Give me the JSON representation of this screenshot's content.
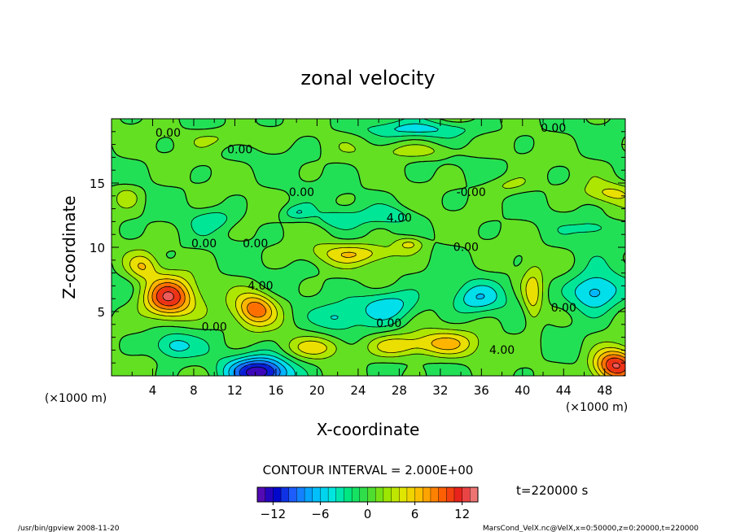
{
  "chart_data": {
    "type": "heatmap",
    "title": "zonal velocity",
    "xlabel": "X-coordinate",
    "ylabel": "Z-coordinate",
    "x_unit_left": "(×1000 m)",
    "x_unit_right": "(×1000 m)",
    "xlim": [
      0,
      50
    ],
    "ylim": [
      0,
      20
    ],
    "x_ticks": [
      4,
      8,
      12,
      16,
      20,
      24,
      28,
      32,
      36,
      40,
      44,
      48
    ],
    "y_ticks": [
      5,
      10,
      15
    ],
    "contour_interval_label": "CONTOUR INTERVAL = 2.000E+00",
    "time_label": "t=220000 s",
    "colorbar": {
      "range": [
        -14,
        14
      ],
      "ticks": [
        -12,
        -6,
        0,
        6,
        12
      ],
      "colors": [
        "#6a0dad",
        "#0000c8",
        "#1e64ff",
        "#00b4ff",
        "#00e6e6",
        "#00e678",
        "#3cdc3c",
        "#96e600",
        "#e6e600",
        "#ffb400",
        "#ff6400",
        "#e61e1e",
        "#f08c8c"
      ]
    },
    "contour_labels": [
      {
        "x": 5.5,
        "z": 18.6,
        "text": "0.00"
      },
      {
        "x": 12.5,
        "z": 17.3,
        "text": "0.00"
      },
      {
        "x": 43.0,
        "z": 19.0,
        "text": "0.00"
      },
      {
        "x": 18.5,
        "z": 14.0,
        "text": "0.00"
      },
      {
        "x": 35.0,
        "z": 14.0,
        "text": "-0.00"
      },
      {
        "x": 28.0,
        "z": 12.0,
        "text": "4.00"
      },
      {
        "x": 9.0,
        "z": 10.0,
        "text": "0.00"
      },
      {
        "x": 14.0,
        "z": 10.0,
        "text": "0.00"
      },
      {
        "x": 34.5,
        "z": 9.7,
        "text": "0.00"
      },
      {
        "x": 14.5,
        "z": 6.7,
        "text": "4.00"
      },
      {
        "x": 27.0,
        "z": 3.8,
        "text": "0.00"
      },
      {
        "x": 38.0,
        "z": 1.7,
        "text": "4.00"
      },
      {
        "x": 44.0,
        "z": 5.0,
        "text": "0.00"
      },
      {
        "x": 10.0,
        "z": 3.5,
        "text": "0.00"
      }
    ],
    "features": [
      {
        "x": 5.5,
        "z": 6.0,
        "value": 12,
        "sx": 2.5,
        "sz": 1.6
      },
      {
        "x": 14.0,
        "z": 5.2,
        "value": 9,
        "sx": 2.0,
        "sz": 1.3
      },
      {
        "x": 49.0,
        "z": 0.8,
        "value": 13,
        "sx": 2.2,
        "sz": 1.3
      },
      {
        "x": 14.5,
        "z": 0.3,
        "value": -13,
        "sx": 3.0,
        "sz": 1.2
      },
      {
        "x": 47.0,
        "z": 6.5,
        "value": -8,
        "sx": 2.5,
        "sz": 1.5
      },
      {
        "x": 27.0,
        "z": 5.5,
        "value": -6,
        "sx": 3.0,
        "sz": 1.3
      },
      {
        "x": 35.5,
        "z": 6.0,
        "value": -5,
        "sx": 2.5,
        "sz": 1.2
      },
      {
        "x": 22.0,
        "z": 4.5,
        "value": -4,
        "sx": 2.0,
        "sz": 1.0
      },
      {
        "x": 6.0,
        "z": 2.3,
        "value": -5,
        "sx": 2.0,
        "sz": 1.0
      },
      {
        "x": 32.0,
        "z": 2.5,
        "value": 6,
        "sx": 3.5,
        "sz": 1.0
      },
      {
        "x": 27.5,
        "z": 2.3,
        "value": 5,
        "sx": 2.5,
        "sz": 0.9
      },
      {
        "x": 20.0,
        "z": 2.2,
        "value": 4,
        "sx": 3.0,
        "sz": 0.8
      },
      {
        "x": 41.0,
        "z": 6.0,
        "value": 5,
        "sx": 1.0,
        "sz": 2.5
      },
      {
        "x": 24.0,
        "z": 9.5,
        "value": 5,
        "sx": 4.5,
        "sz": 0.8
      },
      {
        "x": 29.0,
        "z": 10.3,
        "value": 5,
        "sx": 1.5,
        "sz": 0.6
      },
      {
        "x": 18.0,
        "z": 12.7,
        "value": -4,
        "sx": 1.5,
        "sz": 0.6
      },
      {
        "x": 10.0,
        "z": 12.2,
        "value": -3,
        "sx": 2.0,
        "sz": 0.8
      },
      {
        "x": 22.0,
        "z": 12.2,
        "value": -3,
        "sx": 2.5,
        "sz": 0.7
      },
      {
        "x": 27.0,
        "z": 12.5,
        "value": -3,
        "sx": 2.5,
        "sz": 0.7
      },
      {
        "x": 47.0,
        "z": 11.5,
        "value": -3,
        "sx": 2.0,
        "sz": 0.7
      },
      {
        "x": 48.5,
        "z": 14.2,
        "value": 4,
        "sx": 2.5,
        "sz": 0.8
      },
      {
        "x": 38.5,
        "z": 14.8,
        "value": 3,
        "sx": 2.5,
        "sz": 0.8
      },
      {
        "x": 30.0,
        "z": 19.2,
        "value": -4,
        "sx": 6.0,
        "sz": 0.6
      },
      {
        "x": 12.0,
        "z": 18.5,
        "value": 3,
        "sx": 4.0,
        "sz": 0.8
      },
      {
        "x": 30.0,
        "z": 17.5,
        "value": 3,
        "sx": 5.0,
        "sz": 0.6
      },
      {
        "x": 1.5,
        "z": 14.0,
        "value": 3,
        "sx": 1.5,
        "sz": 1.0
      },
      {
        "x": 3.0,
        "z": 8.5,
        "value": 5,
        "sx": 1.5,
        "sz": 1.0
      }
    ]
  },
  "footer": {
    "left": "/usr/bin/gpview  2008-11-20",
    "right": "MarsCond_VelX.nc@VelX,x=0:50000,z=0:20000,t=220000"
  }
}
